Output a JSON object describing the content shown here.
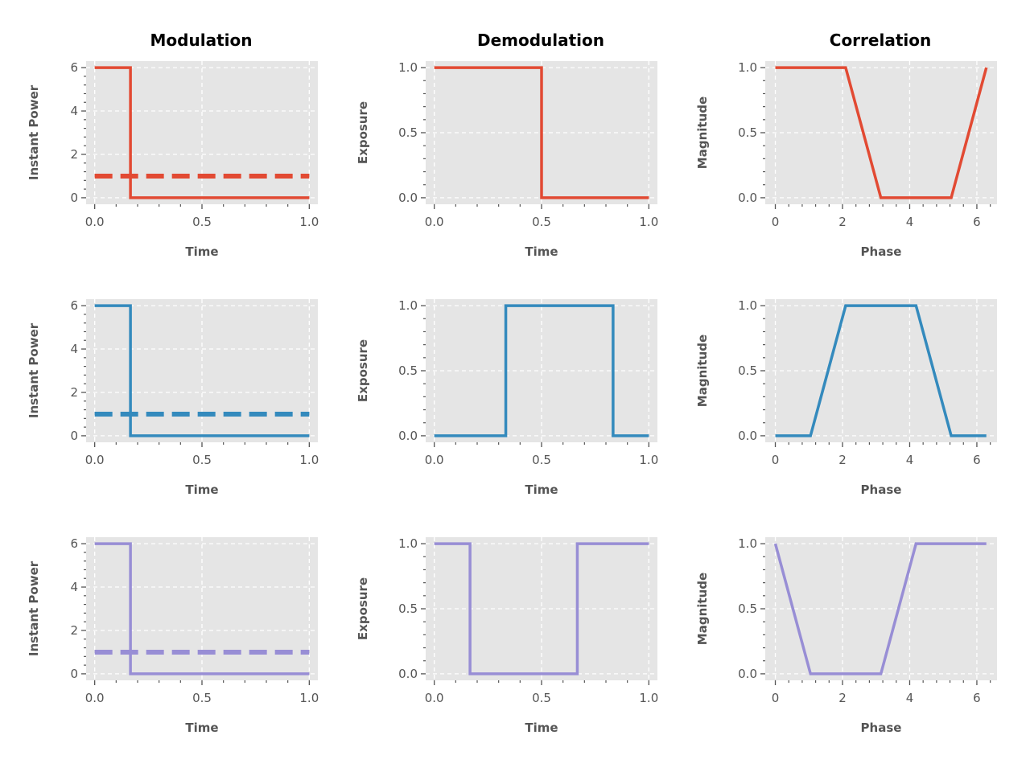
{
  "figure": {
    "column_titles": [
      "Modulation",
      "Demodulation",
      "Correlation"
    ],
    "colors": [
      "#E24A33",
      "#348ABD",
      "#988ED5"
    ]
  },
  "chart_data": [
    {
      "id": "r0c0",
      "type": "line",
      "xlabel": "Time",
      "ylabel": "Instant Power",
      "xlim": [
        -0.04,
        1.04
      ],
      "ylim": [
        -0.3,
        6.3
      ],
      "xticks": [
        0,
        0.5,
        1
      ],
      "xtick_labels": [
        "0.0",
        "0.5",
        "1.0"
      ],
      "yticks": [
        0,
        2,
        4,
        6
      ],
      "ytick_labels": [
        "0",
        "2",
        "4",
        "6"
      ],
      "color": "#E24A33",
      "series": [
        {
          "x": [
            0,
            0.1667,
            0.1667,
            1.0
          ],
          "y": [
            6,
            6,
            0,
            0
          ],
          "style": "solid"
        },
        {
          "x": [
            0,
            1.0
          ],
          "y": [
            1,
            1
          ],
          "style": "dashed"
        }
      ]
    },
    {
      "id": "r0c1",
      "type": "line",
      "xlabel": "Time",
      "ylabel": "Exposure",
      "xlim": [
        -0.04,
        1.04
      ],
      "ylim": [
        -0.05,
        1.05
      ],
      "xticks": [
        0,
        0.5,
        1
      ],
      "xtick_labels": [
        "0.0",
        "0.5",
        "1.0"
      ],
      "yticks": [
        0,
        0.5,
        1
      ],
      "ytick_labels": [
        "0.0",
        "0.5",
        "1.0"
      ],
      "color": "#E24A33",
      "series": [
        {
          "x": [
            0,
            0.5,
            0.5,
            1.0
          ],
          "y": [
            1,
            1,
            0,
            0
          ],
          "style": "solid"
        }
      ]
    },
    {
      "id": "r0c2",
      "type": "line",
      "xlabel": "Phase",
      "ylabel": "Magnitude",
      "xlim": [
        -0.3,
        6.6
      ],
      "ylim": [
        -0.05,
        1.05
      ],
      "xticks": [
        0,
        2,
        4,
        6
      ],
      "xtick_labels": [
        "0",
        "2",
        "4",
        "6"
      ],
      "yticks": [
        0,
        0.5,
        1
      ],
      "ytick_labels": [
        "0.0",
        "0.5",
        "1.0"
      ],
      "color": "#E24A33",
      "series": [
        {
          "x": [
            0,
            2.094,
            3.142,
            5.236,
            6.283
          ],
          "y": [
            1,
            1,
            0,
            0,
            1
          ],
          "style": "solid"
        }
      ]
    },
    {
      "id": "r1c0",
      "type": "line",
      "xlabel": "Time",
      "ylabel": "Instant Power",
      "xlim": [
        -0.04,
        1.04
      ],
      "ylim": [
        -0.3,
        6.3
      ],
      "xticks": [
        0,
        0.5,
        1
      ],
      "xtick_labels": [
        "0.0",
        "0.5",
        "1.0"
      ],
      "yticks": [
        0,
        2,
        4,
        6
      ],
      "ytick_labels": [
        "0",
        "2",
        "4",
        "6"
      ],
      "color": "#348ABD",
      "series": [
        {
          "x": [
            0,
            0.1667,
            0.1667,
            1.0
          ],
          "y": [
            6,
            6,
            0,
            0
          ],
          "style": "solid"
        },
        {
          "x": [
            0,
            1.0
          ],
          "y": [
            1,
            1
          ],
          "style": "dashed"
        }
      ]
    },
    {
      "id": "r1c1",
      "type": "line",
      "xlabel": "Time",
      "ylabel": "Exposure",
      "xlim": [
        -0.04,
        1.04
      ],
      "ylim": [
        -0.05,
        1.05
      ],
      "xticks": [
        0,
        0.5,
        1
      ],
      "xtick_labels": [
        "0.0",
        "0.5",
        "1.0"
      ],
      "yticks": [
        0,
        0.5,
        1
      ],
      "ytick_labels": [
        "0.0",
        "0.5",
        "1.0"
      ],
      "color": "#348ABD",
      "series": [
        {
          "x": [
            0,
            0.3333,
            0.3333,
            0.8333,
            0.8333,
            1.0
          ],
          "y": [
            0,
            0,
            1,
            1,
            0,
            0
          ],
          "style": "solid"
        }
      ]
    },
    {
      "id": "r1c2",
      "type": "line",
      "xlabel": "Phase",
      "ylabel": "Magnitude",
      "xlim": [
        -0.3,
        6.6
      ],
      "ylim": [
        -0.05,
        1.05
      ],
      "xticks": [
        0,
        2,
        4,
        6
      ],
      "xtick_labels": [
        "0",
        "2",
        "4",
        "6"
      ],
      "yticks": [
        0,
        0.5,
        1
      ],
      "ytick_labels": [
        "0.0",
        "0.5",
        "1.0"
      ],
      "color": "#348ABD",
      "series": [
        {
          "x": [
            0,
            1.047,
            2.094,
            4.189,
            5.236,
            6.283
          ],
          "y": [
            0,
            0,
            1,
            1,
            0,
            0
          ],
          "style": "solid"
        }
      ]
    },
    {
      "id": "r2c0",
      "type": "line",
      "xlabel": "Time",
      "ylabel": "Instant Power",
      "xlim": [
        -0.04,
        1.04
      ],
      "ylim": [
        -0.3,
        6.3
      ],
      "xticks": [
        0,
        0.5,
        1
      ],
      "xtick_labels": [
        "0.0",
        "0.5",
        "1.0"
      ],
      "yticks": [
        0,
        2,
        4,
        6
      ],
      "ytick_labels": [
        "0",
        "2",
        "4",
        "6"
      ],
      "color": "#988ED5",
      "series": [
        {
          "x": [
            0,
            0.1667,
            0.1667,
            1.0
          ],
          "y": [
            6,
            6,
            0,
            0
          ],
          "style": "solid"
        },
        {
          "x": [
            0,
            1.0
          ],
          "y": [
            1,
            1
          ],
          "style": "dashed"
        }
      ]
    },
    {
      "id": "r2c1",
      "type": "line",
      "xlabel": "Time",
      "ylabel": "Exposure",
      "xlim": [
        -0.04,
        1.04
      ],
      "ylim": [
        -0.05,
        1.05
      ],
      "xticks": [
        0,
        0.5,
        1
      ],
      "xtick_labels": [
        "0.0",
        "0.5",
        "1.0"
      ],
      "yticks": [
        0,
        0.5,
        1
      ],
      "ytick_labels": [
        "0.0",
        "0.5",
        "1.0"
      ],
      "color": "#988ED5",
      "series": [
        {
          "x": [
            0,
            0.1667,
            0.1667,
            0.6667,
            0.6667,
            1.0
          ],
          "y": [
            1,
            1,
            0,
            0,
            1,
            1
          ],
          "style": "solid"
        }
      ]
    },
    {
      "id": "r2c2",
      "type": "line",
      "xlabel": "Phase",
      "ylabel": "Magnitude",
      "xlim": [
        -0.3,
        6.6
      ],
      "ylim": [
        -0.05,
        1.05
      ],
      "xticks": [
        0,
        2,
        4,
        6
      ],
      "xtick_labels": [
        "0",
        "2",
        "4",
        "6"
      ],
      "yticks": [
        0,
        0.5,
        1
      ],
      "ytick_labels": [
        "0.0",
        "0.5",
        "1.0"
      ],
      "color": "#988ED5",
      "series": [
        {
          "x": [
            0,
            1.047,
            3.142,
            4.189,
            6.283
          ],
          "y": [
            1,
            0,
            0,
            1,
            1
          ],
          "style": "solid"
        }
      ]
    }
  ]
}
